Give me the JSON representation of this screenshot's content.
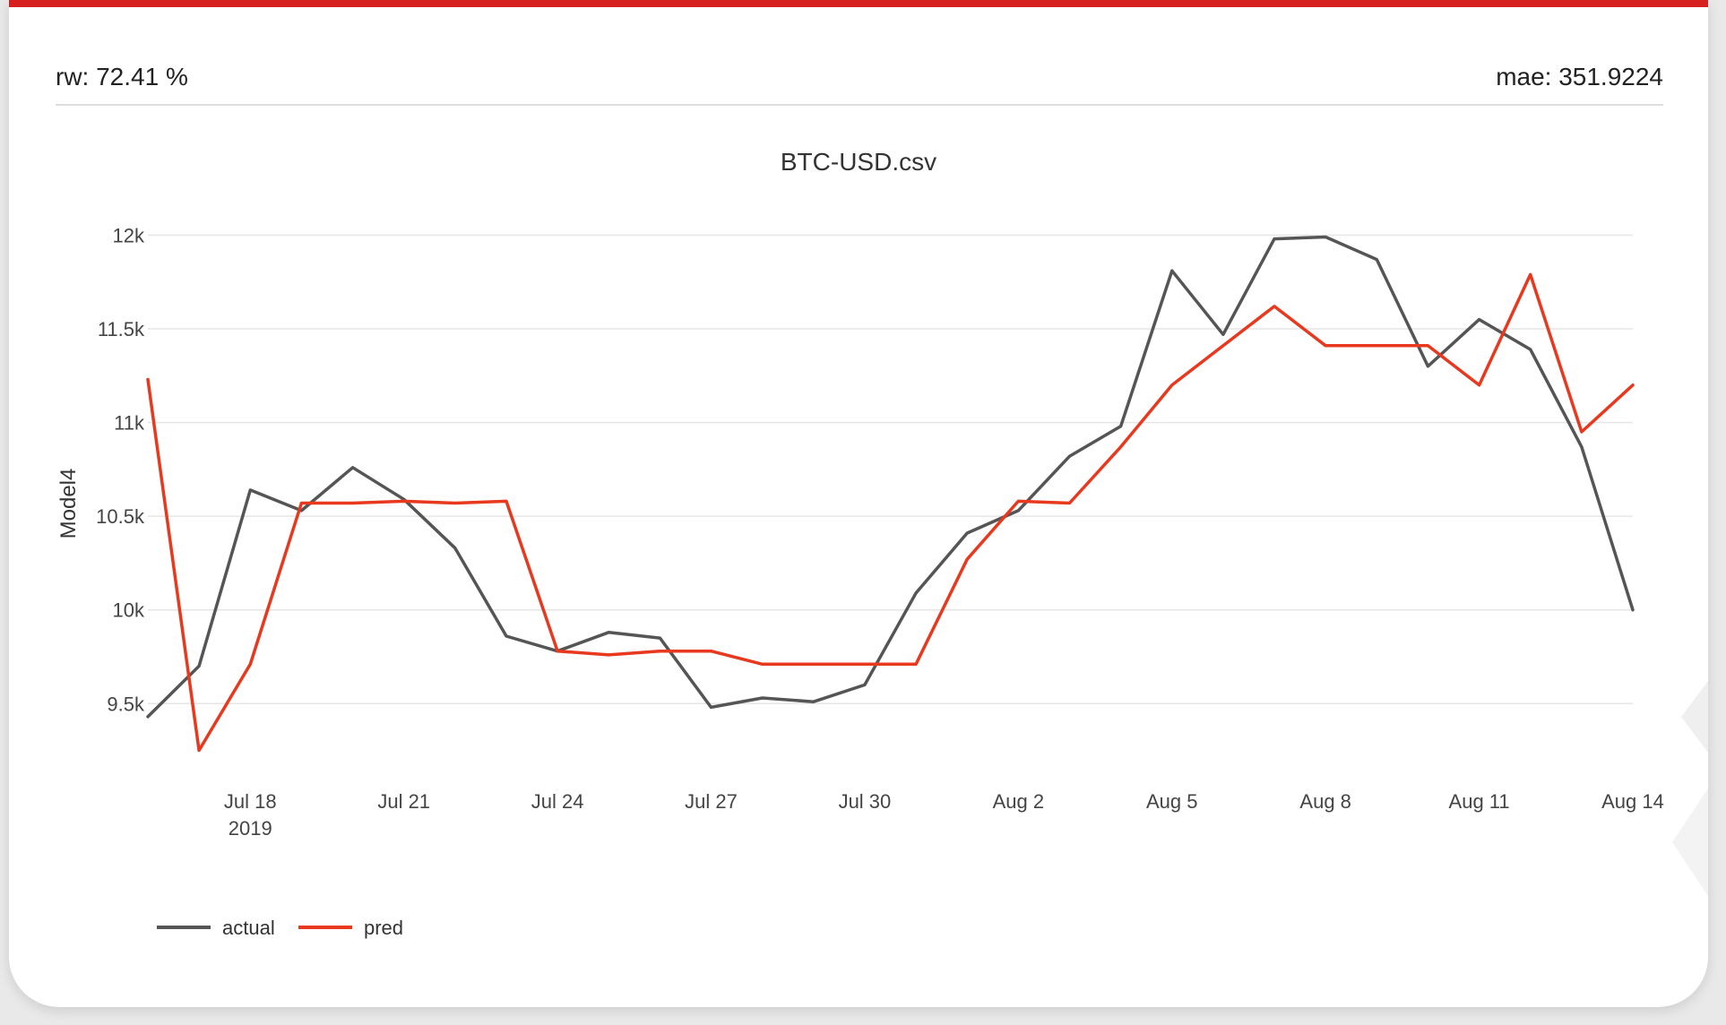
{
  "metrics": {
    "left": "rw: 72.41 %",
    "right": "mae: 351.9224"
  },
  "colors": {
    "accent": "#d62020",
    "actual": "#555555",
    "pred": "#e8381e"
  },
  "chart_data": {
    "type": "line",
    "title": "BTC-USD.csv",
    "xlabel": "",
    "ylabel": "Model4",
    "ylim": [
      9200,
      12050
    ],
    "y_ticks": [
      {
        "value": 9500,
        "label": "9.5k"
      },
      {
        "value": 10000,
        "label": "10k"
      },
      {
        "value": 10500,
        "label": "10.5k"
      },
      {
        "value": 11000,
        "label": "11k"
      },
      {
        "value": 11500,
        "label": "11.5k"
      },
      {
        "value": 12000,
        "label": "12k"
      }
    ],
    "x_ticks": [
      {
        "x": "2019-07-18",
        "label": "Jul 18",
        "sublabel": "2019"
      },
      {
        "x": "2019-07-21",
        "label": "Jul 21"
      },
      {
        "x": "2019-07-24",
        "label": "Jul 24"
      },
      {
        "x": "2019-07-27",
        "label": "Jul 27"
      },
      {
        "x": "2019-07-30",
        "label": "Jul 30"
      },
      {
        "x": "2019-08-02",
        "label": "Aug 2"
      },
      {
        "x": "2019-08-05",
        "label": "Aug 5"
      },
      {
        "x": "2019-08-08",
        "label": "Aug 8"
      },
      {
        "x": "2019-08-11",
        "label": "Aug 11"
      },
      {
        "x": "2019-08-14",
        "label": "Aug 14"
      }
    ],
    "x": [
      "2019-07-16",
      "2019-07-17",
      "2019-07-18",
      "2019-07-19",
      "2019-07-20",
      "2019-07-21",
      "2019-07-22",
      "2019-07-23",
      "2019-07-24",
      "2019-07-25",
      "2019-07-26",
      "2019-07-27",
      "2019-07-28",
      "2019-07-29",
      "2019-07-30",
      "2019-07-31",
      "2019-08-01",
      "2019-08-02",
      "2019-08-03",
      "2019-08-04",
      "2019-08-05",
      "2019-08-06",
      "2019-08-07",
      "2019-08-08",
      "2019-08-09",
      "2019-08-10",
      "2019-08-11",
      "2019-08-12",
      "2019-08-13",
      "2019-08-14"
    ],
    "series": [
      {
        "name": "actual",
        "values": [
          9430,
          9700,
          10640,
          10530,
          10760,
          10590,
          10330,
          9860,
          9780,
          9880,
          9850,
          9480,
          9530,
          9510,
          9600,
          10090,
          10410,
          10530,
          10820,
          10980,
          11810,
          11470,
          11980,
          11990,
          11870,
          11300,
          11550,
          11390,
          10870,
          10000
        ]
      },
      {
        "name": "pred",
        "values": [
          11230,
          9250,
          9710,
          10570,
          10570,
          10580,
          10570,
          10580,
          9780,
          9760,
          9780,
          9780,
          9710,
          9710,
          9710,
          9710,
          10270,
          10580,
          10570,
          10870,
          11200,
          11410,
          11620,
          11410,
          11410,
          11410,
          11200,
          11790,
          10950,
          11200
        ]
      }
    ],
    "legend": {
      "placement": "bottom-left"
    },
    "grid": true
  }
}
